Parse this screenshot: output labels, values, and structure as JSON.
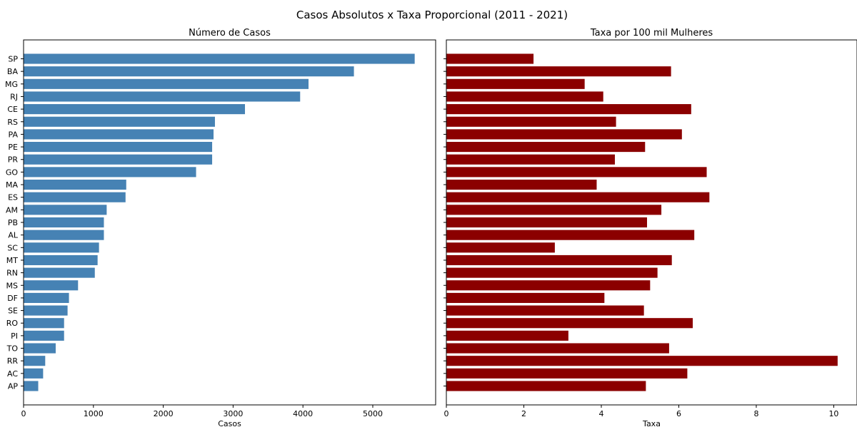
{
  "figure_title": "Casos Absolutos x Taxa Proporcional (2011 - 2021)",
  "chart_data": [
    {
      "type": "bar",
      "orientation": "horizontal",
      "title": "Número de Casos",
      "xlabel": "Casos",
      "ylabel": "",
      "color": "#4682b4",
      "xlim": [
        0,
        5900
      ],
      "xticks": [
        0,
        1000,
        2000,
        3000,
        4000,
        5000
      ],
      "grid": false,
      "categories": [
        "SP",
        "BA",
        "MG",
        "RJ",
        "CE",
        "RS",
        "PA",
        "PE",
        "PR",
        "GO",
        "MA",
        "ES",
        "AM",
        "PB",
        "AL",
        "SC",
        "MT",
        "RN",
        "MS",
        "DF",
        "SE",
        "RO",
        "PI",
        "TO",
        "RR",
        "AC",
        "AP"
      ],
      "values": [
        5600,
        4730,
        4080,
        3960,
        3170,
        2740,
        2720,
        2700,
        2700,
        2470,
        1470,
        1460,
        1190,
        1150,
        1150,
        1080,
        1060,
        1020,
        780,
        650,
        630,
        580,
        580,
        460,
        310,
        280,
        210
      ]
    },
    {
      "type": "bar",
      "orientation": "horizontal",
      "title": "Taxa por 100 mil Mulheres",
      "xlabel": "Taxa",
      "ylabel": "",
      "color": "#8b0000",
      "xlim": [
        0,
        10.6
      ],
      "xticks": [
        0,
        2,
        4,
        6,
        8,
        10
      ],
      "grid": false,
      "categories": [
        "SP",
        "BA",
        "MG",
        "RJ",
        "CE",
        "RS",
        "PA",
        "PE",
        "PR",
        "GO",
        "MA",
        "ES",
        "AM",
        "PB",
        "AL",
        "SC",
        "MT",
        "RN",
        "MS",
        "DF",
        "SE",
        "RO",
        "PI",
        "TO",
        "RR",
        "AC",
        "AP"
      ],
      "values": [
        2.25,
        5.8,
        3.57,
        4.05,
        6.32,
        4.38,
        6.08,
        5.13,
        4.35,
        6.72,
        3.88,
        6.79,
        5.55,
        5.18,
        6.4,
        2.8,
        5.82,
        5.45,
        5.26,
        4.08,
        5.1,
        6.36,
        3.15,
        5.75,
        10.1,
        6.22,
        5.15
      ]
    }
  ]
}
